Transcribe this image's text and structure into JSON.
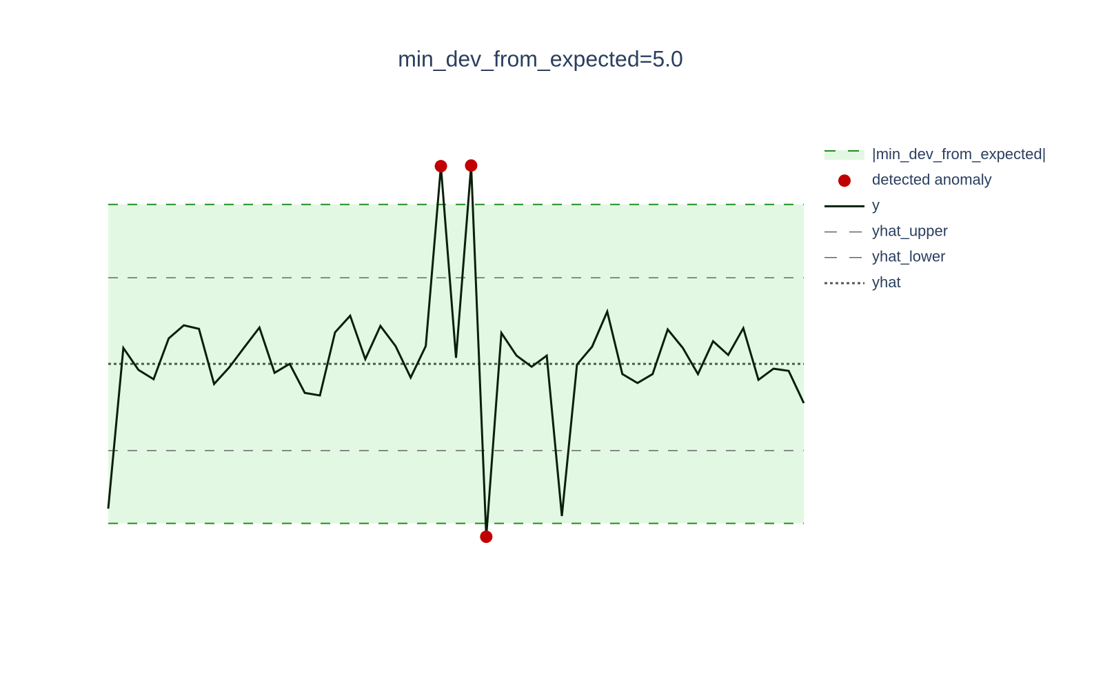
{
  "chart_data": {
    "type": "line",
    "title": "min_dev_from_expected=5.0",
    "x": [
      0,
      1,
      2,
      3,
      4,
      5,
      6,
      7,
      8,
      9,
      10,
      11,
      12,
      13,
      14,
      15,
      16,
      17,
      18,
      19,
      20,
      21,
      22,
      23,
      24,
      25,
      26,
      27,
      28,
      29,
      30,
      31,
      32,
      33,
      34,
      35,
      36,
      37,
      38,
      39,
      40,
      41,
      42,
      43,
      44,
      45,
      46
    ],
    "xlim": [
      0,
      46
    ],
    "ylim": [
      -6.5,
      7.5
    ],
    "series": [
      {
        "name": "|min_dev_from_expected|",
        "kind": "band",
        "color": "#1f8f1f",
        "fill": "#e3f8e3",
        "x": [
          0,
          46
        ],
        "upper": [
          5,
          5
        ],
        "lower": [
          -5,
          -5
        ]
      },
      {
        "name": "detected anomaly",
        "kind": "markers",
        "color": "#c00000",
        "x": [
          22,
          24,
          25
        ],
        "values": [
          6.2,
          6.22,
          -5.42
        ]
      },
      {
        "name": "y",
        "kind": "solid",
        "color": "#0a1f0a",
        "values": [
          -4.54,
          0.5,
          -0.19,
          -0.48,
          0.8,
          1.21,
          1.1,
          -0.63,
          -0.11,
          0.52,
          1.14,
          -0.28,
          0,
          -0.91,
          -0.99,
          0.99,
          1.51,
          0.15,
          1.19,
          0.56,
          -0.43,
          0.56,
          6.2,
          0.19,
          6.22,
          -5.42,
          0.97,
          0.26,
          -0.09,
          0.26,
          -4.77,
          -0.02,
          0.54,
          1.64,
          -0.32,
          -0.6,
          -0.32,
          1.08,
          0.5,
          -0.32,
          0.71,
          0.28,
          1.12,
          -0.5,
          -0.15,
          -0.22,
          -1.23
        ]
      },
      {
        "name": "yhat_upper",
        "kind": "dash",
        "color": "#666666",
        "x": [
          0,
          46
        ],
        "values": [
          2.7,
          2.7
        ]
      },
      {
        "name": "yhat_lower",
        "kind": "dash",
        "color": "#666666",
        "x": [
          0,
          46
        ],
        "values": [
          -2.72,
          -2.72
        ]
      },
      {
        "name": "yhat",
        "kind": "dot",
        "color": "#4d5a4d",
        "x": [
          0,
          46
        ],
        "values": [
          0,
          0
        ]
      }
    ]
  }
}
